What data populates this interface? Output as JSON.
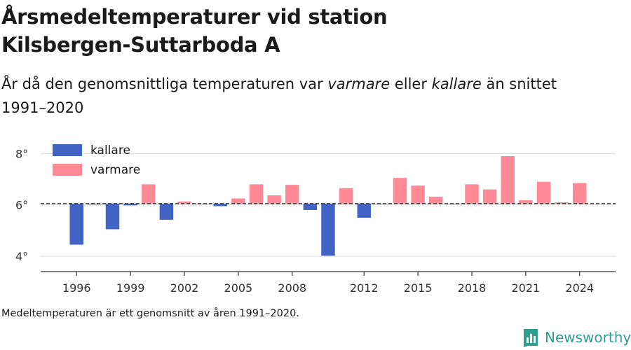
{
  "title_line1": "Årsmedeltemperaturer vid station",
  "title_line2": "Kilsbergen-Suttarboda A",
  "subtitle_part1": "År då den genomsnittliga temperaturen var ",
  "subtitle_warm": "varmare",
  "subtitle_part2": " eller ",
  "subtitle_cold": "kallare",
  "subtitle_part3": " än snittet",
  "subtitle_line2": "1991–2020",
  "footnote": "Medeltemperaturen är ett genomsnitt av åren 1991–2020.",
  "brand": {
    "name": "Newsworthy",
    "color": "#2f9e8f",
    "icon": "bar-chart-logo-icon"
  },
  "chart_data": {
    "type": "bar",
    "baseline": 6.05,
    "ylim": [
      3.4,
      8.8
    ],
    "xlim": [
      1994,
      2026
    ],
    "y_ticks": [
      4,
      6,
      8
    ],
    "y_tick_labels": [
      "4°",
      "6°",
      "8°"
    ],
    "x_ticks": [
      1996,
      1999,
      2002,
      2005,
      2008,
      2012,
      2015,
      2018,
      2021,
      2024
    ],
    "colors": {
      "colder": "#4063c4",
      "warmer": "#ff8a95"
    },
    "legend": {
      "position": "top-left",
      "entries": [
        {
          "key": "colder",
          "label": "kallare"
        },
        {
          "key": "warmer",
          "label": "varmare"
        }
      ]
    },
    "x": [
      1996,
      1997,
      1998,
      1999,
      2000,
      2001,
      2002,
      2003,
      2004,
      2005,
      2006,
      2007,
      2008,
      2009,
      2010,
      2011,
      2012,
      2013,
      2014,
      2015,
      2016,
      2017,
      2018,
      2019,
      2020,
      2021,
      2022,
      2023,
      2024
    ],
    "values": [
      4.45,
      6.02,
      5.05,
      5.98,
      6.8,
      5.42,
      6.13,
      6.05,
      5.95,
      6.25,
      6.8,
      6.37,
      6.78,
      5.8,
      4.02,
      6.65,
      5.5,
      6.05,
      7.05,
      6.75,
      6.32,
      6.05,
      6.8,
      6.6,
      7.9,
      6.18,
      6.9,
      6.1,
      6.85
    ]
  }
}
